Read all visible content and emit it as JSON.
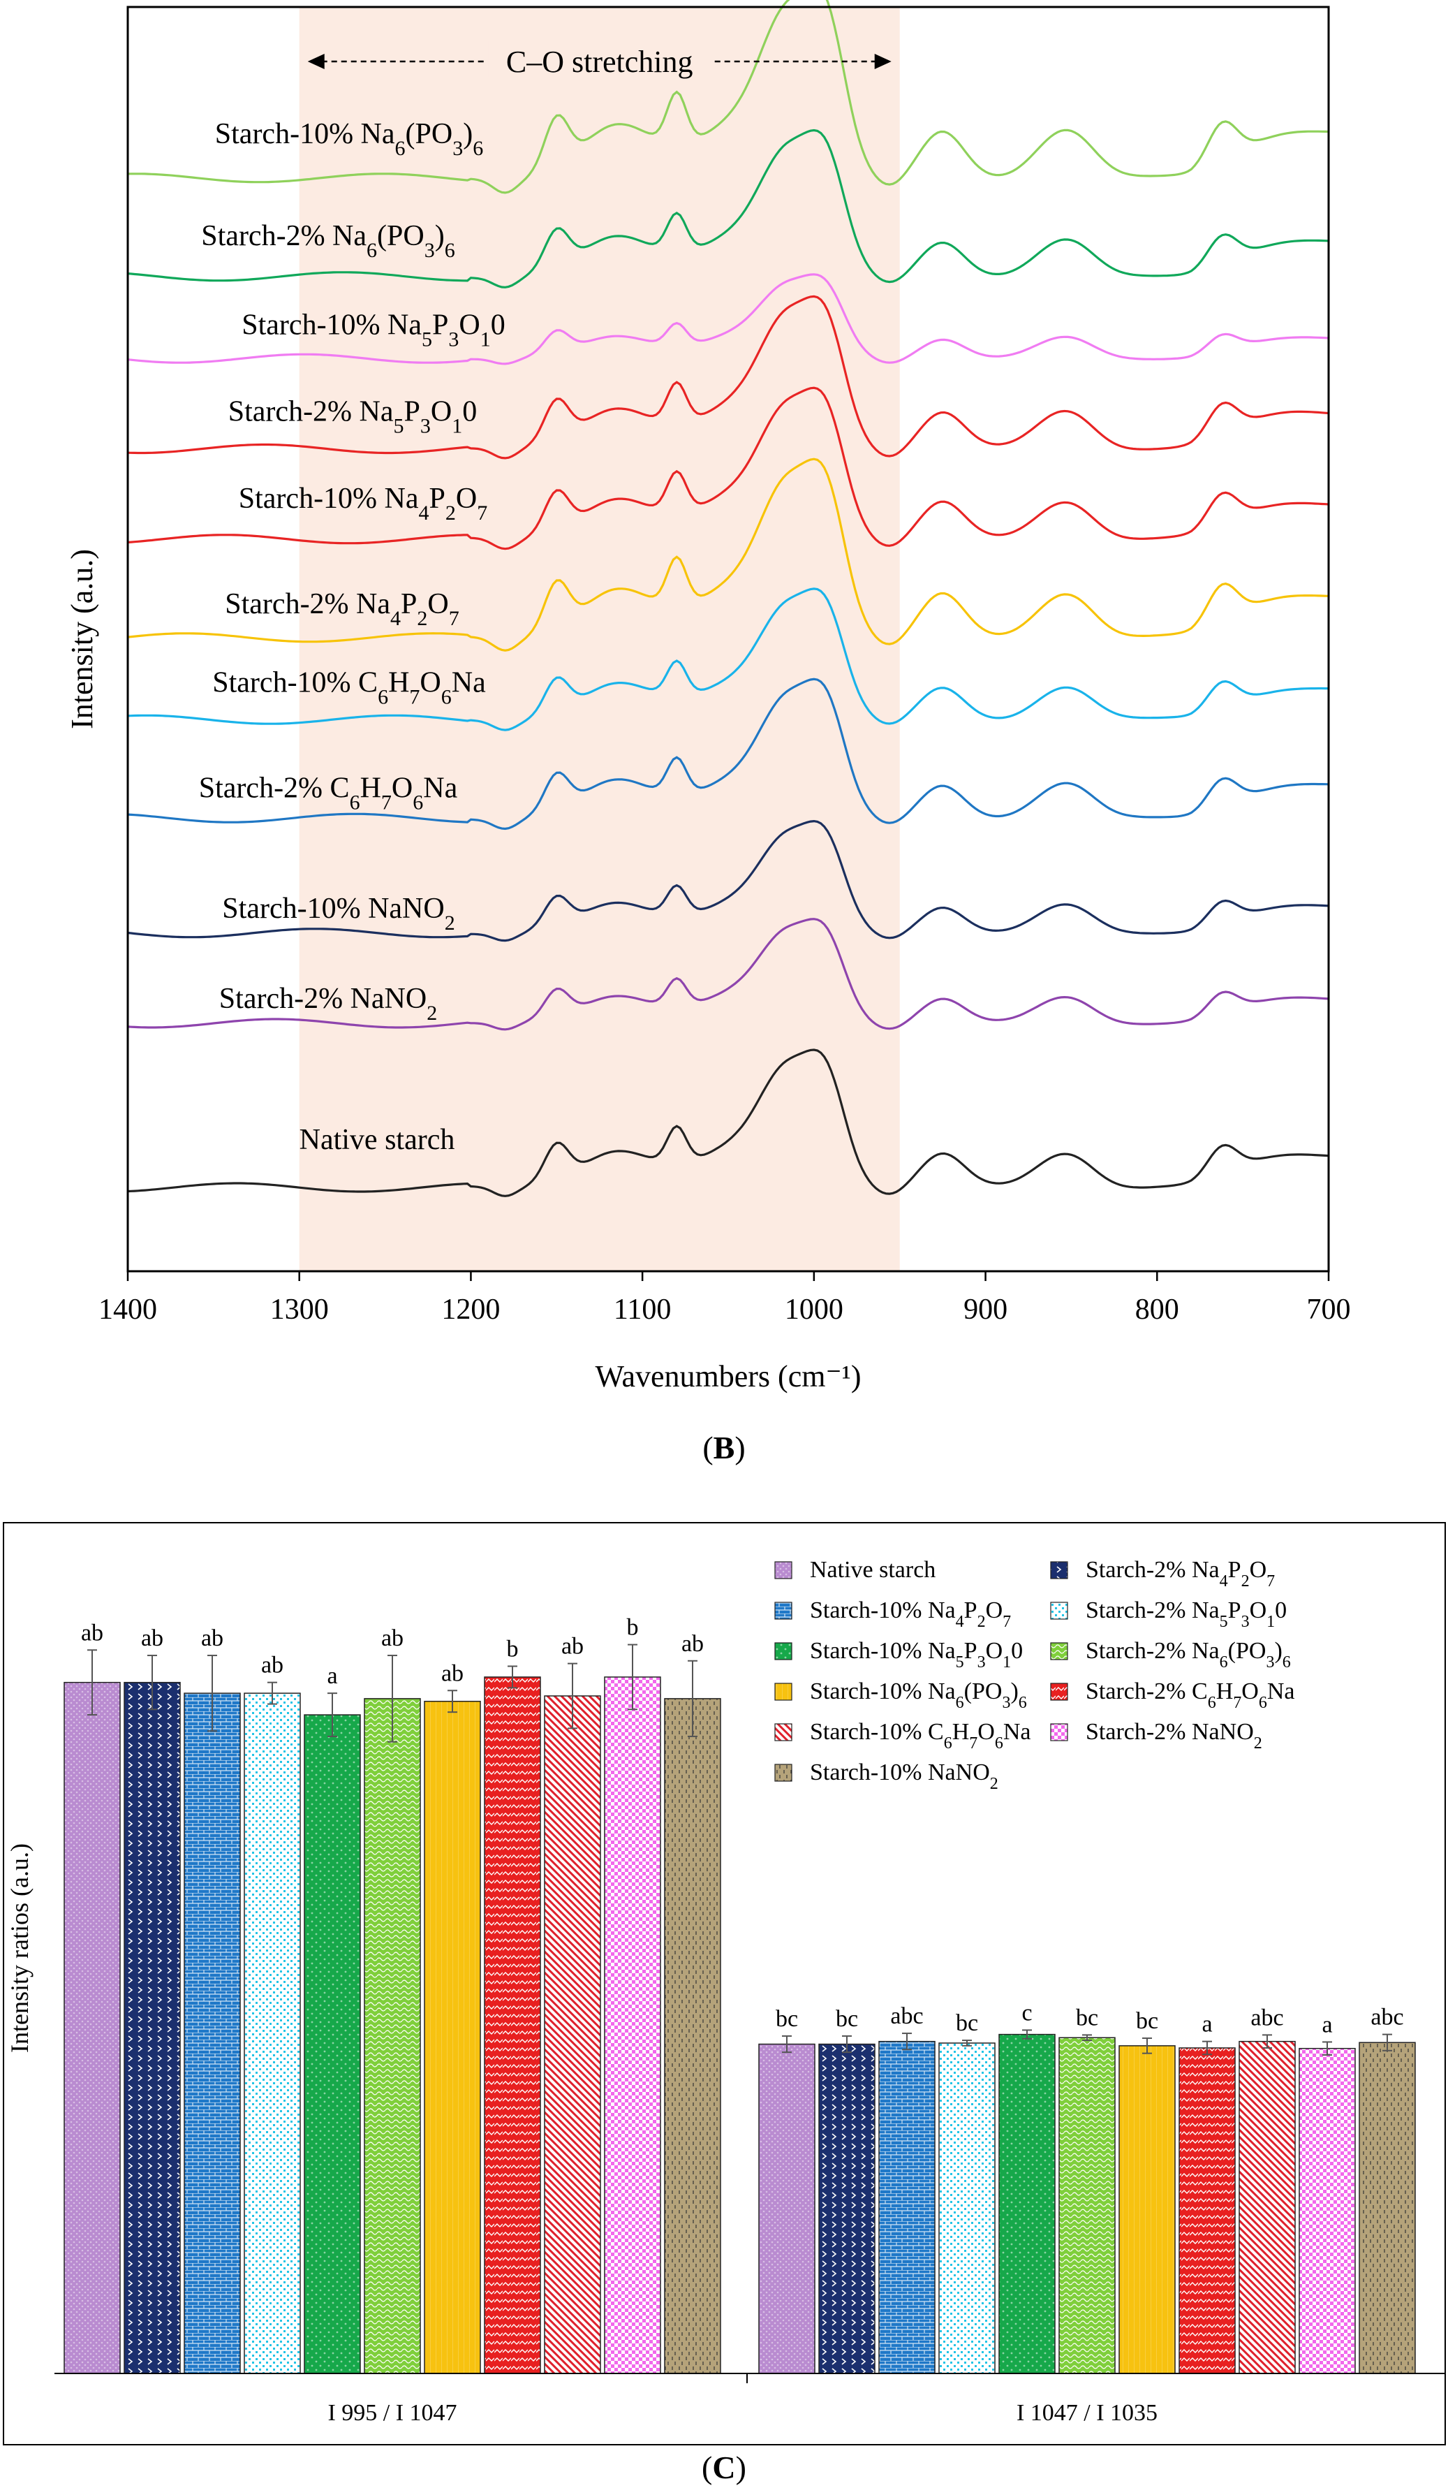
{
  "panel_b": {
    "caption_letter": "B",
    "colors": {
      "native": "#222222",
      "nano2_2": "#8e44ad",
      "nano2_10": "#1b2f5e",
      "asc_2": "#1f77c4",
      "asc_10": "#19b3ea",
      "pyro_2": "#f7c308",
      "pyro_10": "#e82424",
      "tpp_2": "#e82424",
      "tpp_10": "#f07cf2",
      "hmp_2": "#10a85a",
      "hmp_10": "#8fd15b",
      "region_fill": "#fcebe2",
      "region_text": "C–O stretching"
    }
  },
  "panel_c": {
    "caption_letter": "C",
    "colors": {
      "native": "#b98bd0",
      "pyro_2": "#1b2f6e",
      "pyro_10": "#1f78c8",
      "tpp_2": "#22c4e6",
      "tpp_10": "#16a84a",
      "hmp_2": "#7fcf3b",
      "hmp_10": "#f7c210",
      "asc_2": "#e82020",
      "asc_10": "#e0202c",
      "nano2_2": "#f268ec",
      "nano2_10": "#b5a37a"
    }
  },
  "chart_data": [
    {
      "type": "line",
      "panel": "B",
      "title": "",
      "xlabel": "Wavenumbers (cm⁻¹)",
      "ylabel": "Intensity (a.u.)",
      "xlim": [
        1400,
        700
      ],
      "x_ticks": [
        "1400",
        "1300",
        "1200",
        "1100",
        "1000",
        "900",
        "800",
        "700"
      ],
      "annotation": "C–O stretching",
      "highlight_range": [
        1300,
        950
      ],
      "series": [
        {
          "name": "Native starch",
          "key": "native",
          "sub": null,
          "baseline": 0.0,
          "amp": 1.0
        },
        {
          "name": "Starch-2% NaNO2",
          "key": "nano2_2",
          "sub": "NaNO2",
          "baseline": 1.0,
          "amp": 0.75
        },
        {
          "name": "Starch-10% NaNO2",
          "key": "nano2_10",
          "sub": "NaNO2",
          "baseline": 1.55,
          "amp": 0.8
        },
        {
          "name": "Starch-2% C6H7O6Na",
          "key": "asc_2",
          "sub": "C6H7O6Na",
          "baseline": 2.25,
          "amp": 1.0
        },
        {
          "name": "Starch-10% C6H7O6Na",
          "key": "asc_10",
          "sub": "C6H7O6Na",
          "baseline": 2.85,
          "amp": 0.95
        },
        {
          "name": "Starch-2% Na4P2O7",
          "key": "pyro_2",
          "sub": "Na4P2O7",
          "baseline": 3.35,
          "amp": 1.3
        },
        {
          "name": "Starch-10% Na4P2O7",
          "key": "pyro_10",
          "sub": "Na4P2O7",
          "baseline": 3.95,
          "amp": 1.1
        },
        {
          "name": "Starch-2% Na5P3O10",
          "key": "tpp_2",
          "sub": "Na5P3O10",
          "baseline": 4.5,
          "amp": 1.1
        },
        {
          "name": "Starch-10% Na5P3O10",
          "key": "tpp_10",
          "sub": "Na5P3O10",
          "baseline": 5.05,
          "amp": 0.6
        },
        {
          "name": "Starch-2% Na6(PO3)6",
          "key": "hmp_2",
          "sub": "Na6(PO3)6",
          "baseline": 5.55,
          "amp": 1.05
        },
        {
          "name": "Starch-10% Na6(PO3)6",
          "key": "hmp_10",
          "sub": "Na6(PO3)6",
          "baseline": 6.15,
          "amp": 1.4
        }
      ]
    },
    {
      "type": "bar",
      "panel": "C",
      "title": "",
      "xlabel": "",
      "ylabel": "Intensity ratios (a.u.)",
      "ylim": [
        0,
        1.55
      ],
      "categories": [
        "I 995 / I 1047",
        "I 1047 / I 1035"
      ],
      "series": [
        {
          "name": "Native starch",
          "key": "native",
          "values": [
            1.28,
            0.61
          ],
          "errors": [
            0.06,
            0.015
          ],
          "letters": [
            "ab",
            "bc"
          ]
        },
        {
          "name": "Starch-2% Na4P2O7",
          "key": "pyro_2",
          "values": [
            1.28,
            0.61
          ],
          "errors": [
            0.05,
            0.015
          ],
          "letters": [
            "ab",
            "bc"
          ]
        },
        {
          "name": "Starch-10% Na4P2O7",
          "key": "pyro_10",
          "values": [
            1.26,
            0.615
          ],
          "errors": [
            0.07,
            0.015
          ],
          "letters": [
            "ab",
            "abc"
          ]
        },
        {
          "name": "Starch-2% Na5P3O10",
          "key": "tpp_2",
          "values": [
            1.26,
            0.612
          ],
          "errors": [
            0.02,
            0.005
          ],
          "letters": [
            "ab",
            "bc"
          ]
        },
        {
          "name": "Starch-10% Na5P3O10",
          "key": "tpp_10",
          "values": [
            1.22,
            0.628
          ],
          "errors": [
            0.04,
            0.008
          ],
          "letters": [
            "a",
            "c"
          ]
        },
        {
          "name": "Starch-2% Na6(PO3)6",
          "key": "hmp_2",
          "values": [
            1.25,
            0.622
          ],
          "errors": [
            0.08,
            0.005
          ],
          "letters": [
            "ab",
            "bc"
          ]
        },
        {
          "name": "Starch-10% Na6(PO3)6",
          "key": "hmp_10",
          "values": [
            1.245,
            0.607
          ],
          "errors": [
            0.02,
            0.014
          ],
          "letters": [
            "ab",
            "bc"
          ]
        },
        {
          "name": "Starch-2% C6H7O6Na",
          "key": "asc_2",
          "values": [
            1.29,
            0.603
          ],
          "errors": [
            0.02,
            0.012
          ],
          "letters": [
            "b",
            "a"
          ]
        },
        {
          "name": "Starch-10% C6H7O6Na",
          "key": "asc_10",
          "values": [
            1.255,
            0.615
          ],
          "errors": [
            0.06,
            0.012
          ],
          "letters": [
            "ab",
            "abc"
          ]
        },
        {
          "name": "Starch-2% NaNO2",
          "key": "nano2_2",
          "values": [
            1.29,
            0.602
          ],
          "errors": [
            0.06,
            0.012
          ],
          "letters": [
            "b",
            "a"
          ]
        },
        {
          "name": "Starch-10% NaNO2",
          "key": "nano2_10",
          "values": [
            1.25,
            0.613
          ],
          "errors": [
            0.07,
            0.015
          ],
          "letters": [
            "ab",
            "abc"
          ]
        }
      ],
      "legend": [
        {
          "label": "Native starch",
          "key": "native"
        },
        {
          "label": "Starch-2% Na4P2O7",
          "key": "pyro_2"
        },
        {
          "label": "Starch-10% Na4P2O7",
          "key": "pyro_10"
        },
        {
          "label": "Starch-2% Na5P3O10",
          "key": "tpp_2"
        },
        {
          "label": "Starch-10% Na5P3O10",
          "key": "tpp_10"
        },
        {
          "label": "Starch-2% Na6(PO3)6",
          "key": "hmp_2"
        },
        {
          "label": "Starch-10% Na6(PO3)6",
          "key": "hmp_10"
        },
        {
          "label": "Starch-2% C6H7O6Na",
          "key": "asc_2"
        },
        {
          "label": "Starch-10% C6H7O6Na",
          "key": "asc_10"
        },
        {
          "label": "Starch-2% NaNO2",
          "key": "nano2_2"
        },
        {
          "label": "Starch-10% NaNO2",
          "key": "nano2_10"
        }
      ],
      "legend_position": "top-right"
    }
  ]
}
